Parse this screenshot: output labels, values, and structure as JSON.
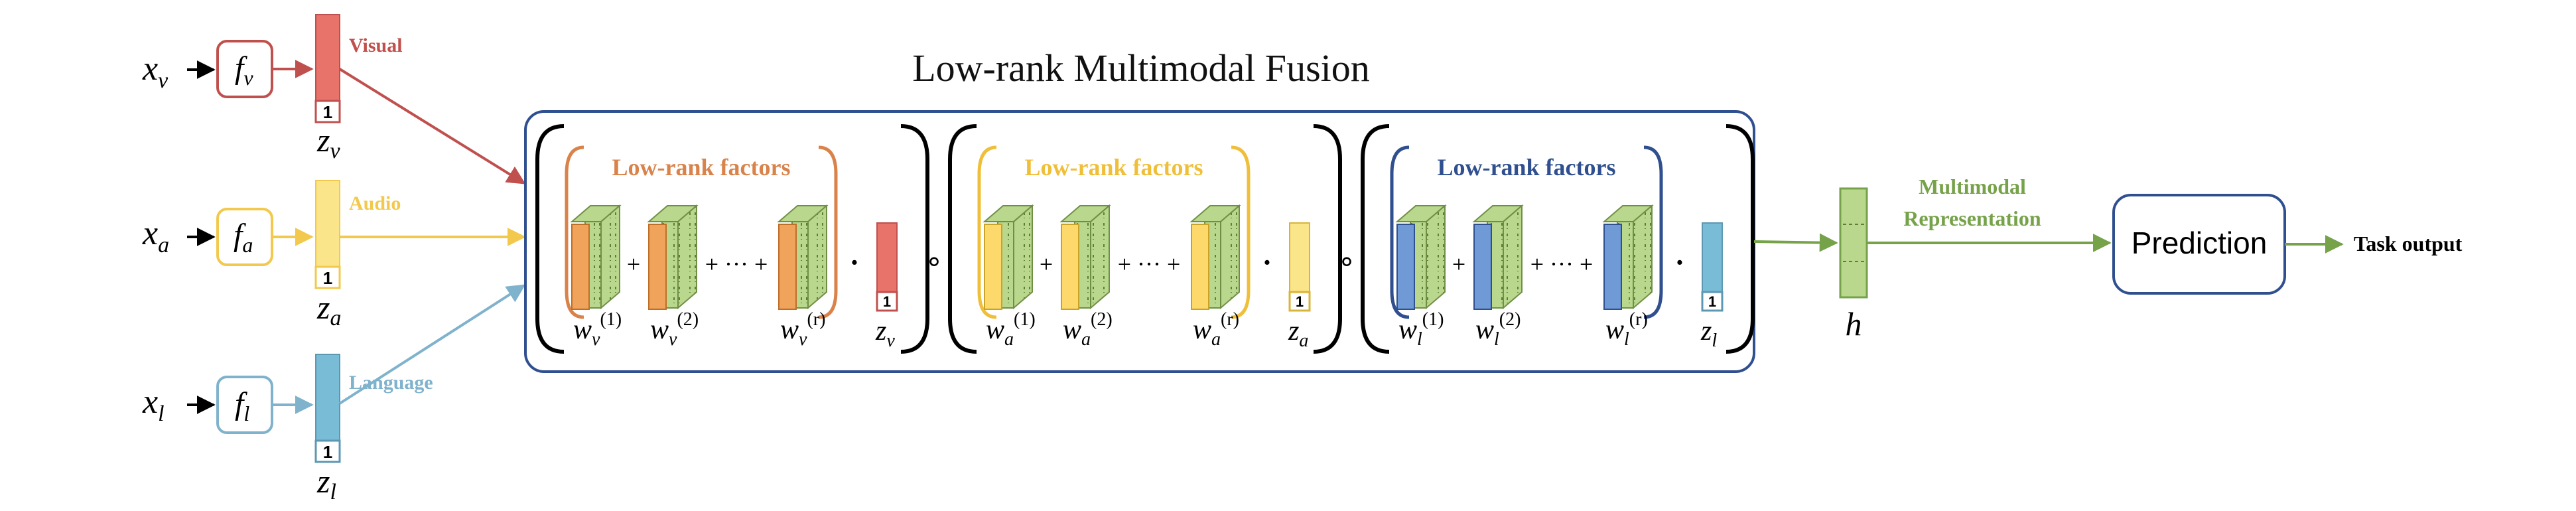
{
  "title": "Low-rank Multimodal Fusion",
  "colors": {
    "visual": "#c0504d",
    "visual_fill": "#e8736a",
    "audio": "#f2c94c",
    "audio_fill": "#fbe58a",
    "language": "#7fb2cc",
    "language_fill": "#79bcd6",
    "lowrank_v": "#d9834a",
    "lowrank_a": "#f0bf3a",
    "lowrank_l": "#2f4f8f",
    "block_orange": "#f0a45b",
    "block_yellow": "#fcd96a",
    "block_blue": "#6f9ad6",
    "green": "#76a24a",
    "green_fill": "#b9d88d",
    "navy": "#2f4f8f"
  },
  "inputs": [
    {
      "id": "v",
      "x_label": "x",
      "x_sub": "v",
      "f_label": "f",
      "f_sub": "v",
      "modality": "Visual",
      "z_label": "z",
      "z_sub": "v",
      "unit": "1"
    },
    {
      "id": "a",
      "x_label": "x",
      "x_sub": "a",
      "f_label": "f",
      "f_sub": "a",
      "modality": "Audio",
      "z_label": "z",
      "z_sub": "a",
      "unit": "1"
    },
    {
      "id": "l",
      "x_label": "x",
      "x_sub": "l",
      "f_label": "f",
      "f_sub": "l",
      "modality": "Language",
      "z_label": "z",
      "z_sub": "l",
      "unit": "1"
    }
  ],
  "fusion_groups": [
    {
      "id": "v",
      "header": "Low-rank factors",
      "w_sub": "v",
      "sup1": "(1)",
      "sup2": "(2)",
      "supr": "(r)",
      "plus1": "+",
      "plus2": "+ ··· +",
      "dot": "·",
      "z_label": "z",
      "z_sub": "v",
      "unit": "1"
    },
    {
      "id": "a",
      "header": "Low-rank factors",
      "w_sub": "a",
      "sup1": "(1)",
      "sup2": "(2)",
      "supr": "(r)",
      "plus1": "+",
      "plus2": "+ ··· +",
      "dot": "·",
      "z_label": "z",
      "z_sub": "a",
      "unit": "1"
    },
    {
      "id": "l",
      "header": "Low-rank factors",
      "w_sub": "l",
      "sup1": "(1)",
      "sup2": "(2)",
      "supr": "(r)",
      "plus1": "+",
      "plus2": "+ ··· +",
      "dot": "·",
      "z_label": "z",
      "z_sub": "l",
      "unit": "1"
    }
  ],
  "hadamard": "∘",
  "w_letter": "w",
  "representation": {
    "line1": "Multimodal",
    "line2": "Representation",
    "h_label": "h"
  },
  "prediction": "Prediction",
  "task_output": "Task output"
}
